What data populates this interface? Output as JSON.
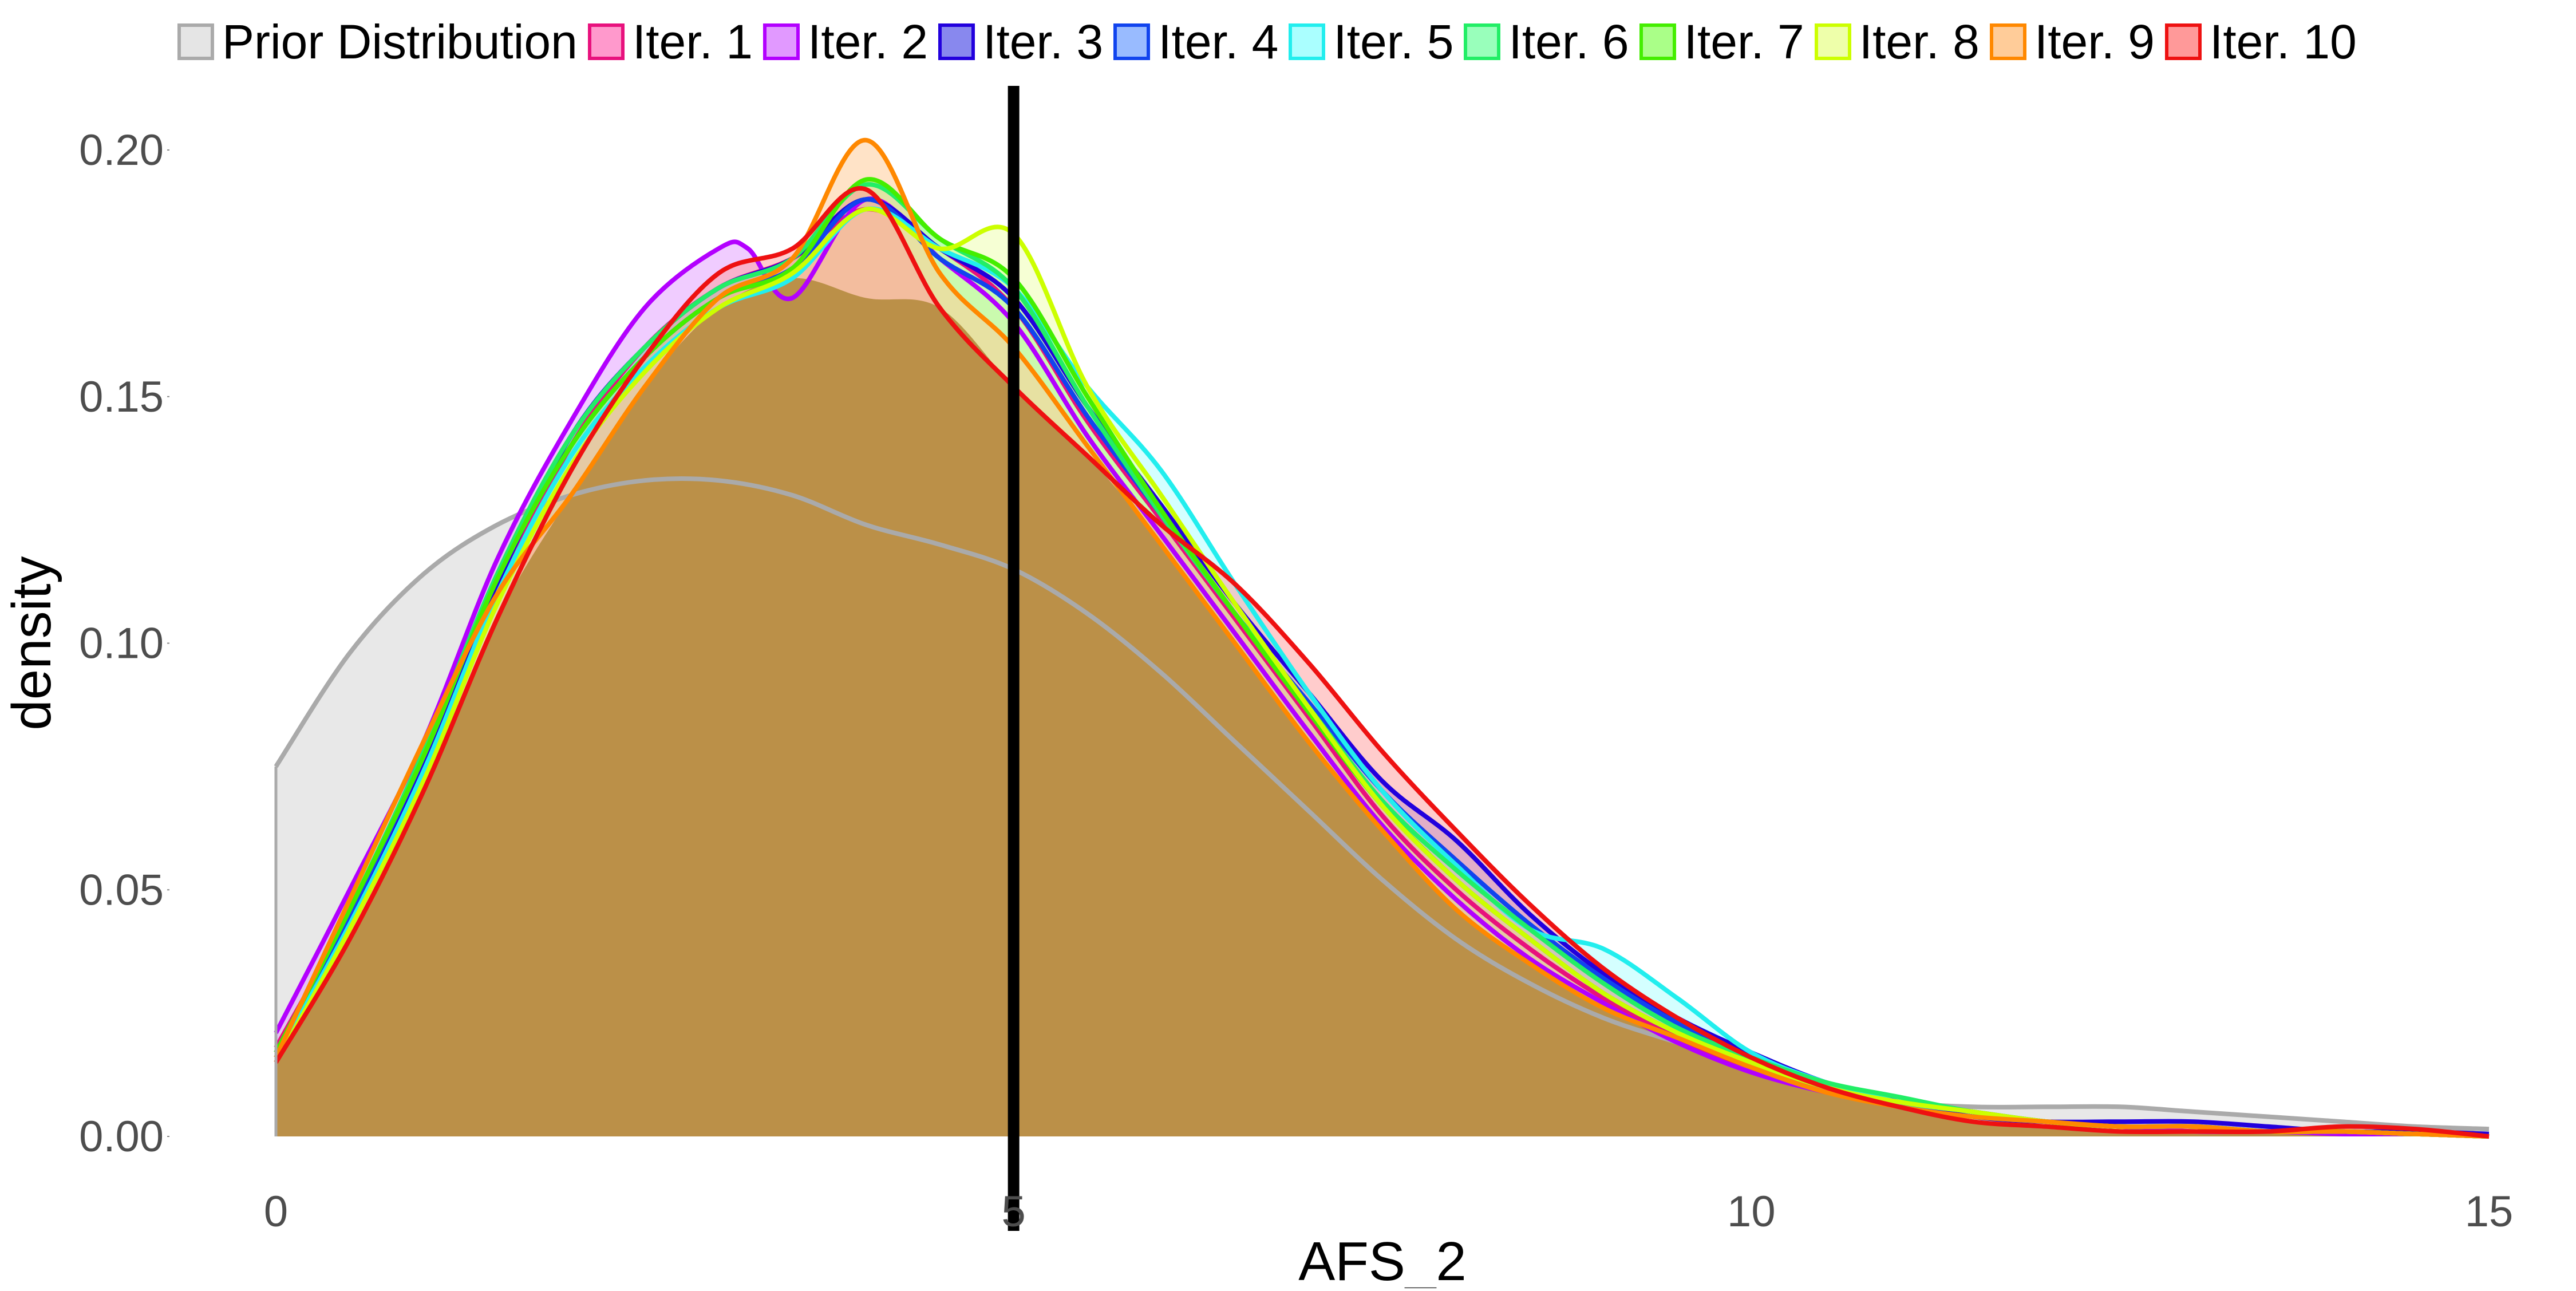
{
  "chart_data": {
    "type": "area",
    "title": "",
    "xlabel": "AFS_2",
    "ylabel": "density",
    "xlim": [
      0,
      15
    ],
    "ylim": [
      0,
      0.2
    ],
    "x_ticks": [
      "0",
      "5",
      "10",
      "15"
    ],
    "y_ticks": [
      "0.00",
      "0.05",
      "0.10",
      "0.15",
      "0.20"
    ],
    "grid": false,
    "legend_position": "top",
    "reference_line_x": 5,
    "series": [
      {
        "name": "Prior Distribution",
        "line_color": "#aaaaaa",
        "fill_color": "#e5e5e5",
        "fill_opacity": 0.9,
        "x": [
          0,
          0.5,
          1,
          1.5,
          2,
          2.5,
          3,
          3.5,
          4,
          4.5,
          5,
          5.5,
          6,
          6.5,
          7,
          7.5,
          8,
          8.5,
          9,
          9.5,
          10,
          10.5,
          11,
          11.5,
          12,
          12.5,
          13,
          13.5,
          14,
          14.5,
          15
        ],
        "y": [
          0.075,
          0.098,
          0.114,
          0.124,
          0.13,
          0.133,
          0.133,
          0.13,
          0.124,
          0.12,
          0.115,
          0.106,
          0.094,
          0.08,
          0.066,
          0.052,
          0.04,
          0.031,
          0.024,
          0.019,
          0.014,
          0.01,
          0.007,
          0.006,
          0.006,
          0.006,
          0.005,
          0.004,
          0.003,
          0.002,
          0.0015
        ]
      },
      {
        "name": "Iter. 1",
        "line_color": "#e8117d",
        "fill_color": "#ff99cc",
        "fill_opacity": 0.5,
        "x": [
          0,
          0.5,
          1,
          1.5,
          2,
          2.5,
          3,
          3.5,
          4,
          4.5,
          5,
          5.5,
          6,
          6.5,
          7,
          7.5,
          8,
          8.5,
          9,
          9.5,
          10,
          10.5,
          11,
          11.5,
          12,
          12.5,
          13,
          13.5,
          14,
          14.5,
          15
        ],
        "y": [
          0.018,
          0.045,
          0.075,
          0.11,
          0.14,
          0.16,
          0.172,
          0.178,
          0.188,
          0.18,
          0.168,
          0.145,
          0.125,
          0.105,
          0.085,
          0.065,
          0.05,
          0.038,
          0.028,
          0.02,
          0.014,
          0.01,
          0.007,
          0.005,
          0.003,
          0.002,
          0.002,
          0.001,
          0.001,
          0.0005,
          0.0
        ]
      },
      {
        "name": "Iter. 2",
        "line_color": "#b300ff",
        "fill_color": "#e199ff",
        "fill_opacity": 0.5,
        "x": [
          0,
          0.5,
          1,
          1.5,
          2,
          2.5,
          3,
          3.2,
          3.5,
          4,
          4.5,
          5,
          5.5,
          6,
          6.5,
          7,
          7.5,
          8,
          8.5,
          9,
          9.5,
          10,
          10.5,
          11,
          11.5,
          12,
          12.5,
          13,
          13.5,
          14,
          14.5,
          15
        ],
        "y": [
          0.021,
          0.05,
          0.08,
          0.117,
          0.145,
          0.168,
          0.18,
          0.18,
          0.17,
          0.19,
          0.178,
          0.165,
          0.142,
          0.122,
          0.102,
          0.082,
          0.063,
          0.048,
          0.036,
          0.027,
          0.019,
          0.013,
          0.009,
          0.006,
          0.004,
          0.003,
          0.002,
          0.001,
          0.001,
          0.0005,
          0.0005,
          0.0
        ]
      },
      {
        "name": "Iter. 3",
        "line_color": "#2200dd",
        "fill_color": "#8888ee",
        "fill_opacity": 0.5,
        "x": [
          0,
          0.5,
          1,
          1.5,
          2,
          2.5,
          3,
          3.5,
          4,
          4.5,
          5,
          5.5,
          6,
          6.5,
          7,
          7.5,
          8,
          8.5,
          9,
          9.5,
          10,
          10.5,
          11,
          11.5,
          12,
          12.5,
          13,
          13.5,
          14,
          14.5,
          15
        ],
        "y": [
          0.017,
          0.044,
          0.076,
          0.112,
          0.142,
          0.16,
          0.172,
          0.178,
          0.19,
          0.18,
          0.17,
          0.148,
          0.128,
          0.108,
          0.09,
          0.072,
          0.06,
          0.045,
          0.033,
          0.024,
          0.017,
          0.011,
          0.007,
          0.004,
          0.003,
          0.003,
          0.003,
          0.002,
          0.001,
          0.001,
          0.0005
        ]
      },
      {
        "name": "Iter. 4",
        "line_color": "#1144ee",
        "fill_color": "#99bbff",
        "fill_opacity": 0.5,
        "x": [
          0,
          0.5,
          1,
          1.5,
          2,
          2.5,
          3,
          3.5,
          4,
          4.5,
          5,
          5.5,
          6,
          6.5,
          7,
          7.5,
          8,
          8.5,
          9,
          9.5,
          10,
          10.5,
          11,
          11.5,
          12,
          12.5,
          13,
          13.5,
          14,
          14.5,
          15
        ],
        "y": [
          0.017,
          0.045,
          0.077,
          0.113,
          0.14,
          0.158,
          0.17,
          0.176,
          0.19,
          0.178,
          0.168,
          0.146,
          0.126,
          0.106,
          0.088,
          0.07,
          0.056,
          0.043,
          0.032,
          0.023,
          0.016,
          0.01,
          0.007,
          0.005,
          0.003,
          0.002,
          0.002,
          0.001,
          0.001,
          0.0005,
          0.0
        ]
      },
      {
        "name": "Iter. 5",
        "line_color": "#22eeee",
        "fill_color": "#aaffff",
        "fill_opacity": 0.5,
        "x": [
          0,
          0.5,
          1,
          1.5,
          2,
          2.5,
          3,
          3.5,
          4,
          4.5,
          5,
          5.5,
          6,
          6.5,
          7,
          7.5,
          8,
          8.5,
          9,
          9.5,
          10,
          10.5,
          11,
          11.5,
          12,
          12.5,
          13,
          13.5,
          14,
          14.5,
          15
        ],
        "y": [
          0.016,
          0.043,
          0.074,
          0.11,
          0.138,
          0.156,
          0.168,
          0.174,
          0.188,
          0.18,
          0.172,
          0.152,
          0.135,
          0.112,
          0.09,
          0.07,
          0.055,
          0.042,
          0.038,
          0.028,
          0.017,
          0.011,
          0.007,
          0.005,
          0.003,
          0.002,
          0.002,
          0.001,
          0.001,
          0.0005,
          0.0
        ]
      },
      {
        "name": "Iter. 6",
        "line_color": "#22ee66",
        "fill_color": "#99ffbb",
        "fill_opacity": 0.5,
        "x": [
          0,
          0.5,
          1,
          1.5,
          2,
          2.5,
          3,
          3.5,
          4,
          4.5,
          5,
          5.5,
          6,
          6.5,
          7,
          7.5,
          8,
          8.5,
          9,
          9.5,
          10,
          10.5,
          11,
          11.5,
          12,
          12.5,
          13,
          13.5,
          14,
          14.5,
          15
        ],
        "y": [
          0.017,
          0.046,
          0.078,
          0.114,
          0.142,
          0.16,
          0.172,
          0.178,
          0.193,
          0.182,
          0.172,
          0.148,
          0.126,
          0.106,
          0.087,
          0.068,
          0.054,
          0.042,
          0.031,
          0.022,
          0.016,
          0.011,
          0.008,
          0.005,
          0.003,
          0.002,
          0.002,
          0.001,
          0.001,
          0.0005,
          0.0
        ]
      },
      {
        "name": "Iter. 7",
        "line_color": "#44ee00",
        "fill_color": "#aaff88",
        "fill_opacity": 0.5,
        "x": [
          0,
          0.5,
          1,
          1.5,
          2,
          2.5,
          3,
          3.5,
          4,
          4.5,
          5,
          5.5,
          6,
          6.5,
          7,
          7.5,
          8,
          8.5,
          9,
          9.5,
          10,
          10.5,
          11,
          11.5,
          12,
          12.5,
          13,
          13.5,
          14,
          14.5,
          15
        ],
        "y": [
          0.017,
          0.046,
          0.077,
          0.113,
          0.14,
          0.158,
          0.17,
          0.176,
          0.194,
          0.182,
          0.174,
          0.15,
          0.127,
          0.106,
          0.086,
          0.067,
          0.052,
          0.04,
          0.029,
          0.021,
          0.015,
          0.01,
          0.007,
          0.005,
          0.003,
          0.002,
          0.002,
          0.001,
          0.001,
          0.0005,
          0.0
        ]
      },
      {
        "name": "Iter. 8",
        "line_color": "#ccff00",
        "fill_color": "#eeffaa",
        "fill_opacity": 0.5,
        "x": [
          0,
          0.5,
          1,
          1.5,
          2,
          2.5,
          3,
          3.5,
          4,
          4.5,
          5,
          5.5,
          6,
          6.5,
          7,
          7.5,
          8,
          8.5,
          9,
          9.5,
          10,
          10.5,
          11,
          11.5,
          12,
          12.5,
          13,
          13.5,
          14,
          14.5,
          15
        ],
        "y": [
          0.015,
          0.042,
          0.072,
          0.108,
          0.136,
          0.155,
          0.168,
          0.175,
          0.188,
          0.18,
          0.183,
          0.152,
          0.13,
          0.108,
          0.087,
          0.067,
          0.052,
          0.04,
          0.029,
          0.021,
          0.015,
          0.01,
          0.007,
          0.005,
          0.003,
          0.002,
          0.002,
          0.001,
          0.001,
          0.0005,
          0.0
        ]
      },
      {
        "name": "Iter. 9",
        "line_color": "#ff8800",
        "fill_color": "#ffcc99",
        "fill_opacity": 0.55,
        "x": [
          0,
          0.5,
          1,
          1.5,
          2,
          2.5,
          3,
          3.5,
          4,
          4.5,
          5,
          5.5,
          6,
          6.5,
          7,
          7.5,
          8,
          8.5,
          9,
          9.5,
          10,
          10.5,
          11,
          11.5,
          12,
          12.5,
          13,
          13.5,
          14,
          14.5,
          15
        ],
        "y": [
          0.016,
          0.048,
          0.08,
          0.11,
          0.13,
          0.152,
          0.17,
          0.178,
          0.202,
          0.175,
          0.16,
          0.14,
          0.12,
          0.1,
          0.08,
          0.062,
          0.046,
          0.035,
          0.026,
          0.02,
          0.014,
          0.009,
          0.006,
          0.004,
          0.003,
          0.002,
          0.002,
          0.001,
          0.001,
          0.0005,
          0.0
        ]
      },
      {
        "name": "Iter. 10",
        "line_color": "#ee1111",
        "fill_color": "#ff9999",
        "fill_opacity": 0.5,
        "x": [
          0,
          0.5,
          1,
          1.5,
          2,
          2.5,
          3,
          3.5,
          4,
          4.5,
          5,
          5.5,
          6,
          6.5,
          7,
          7.5,
          8,
          8.5,
          9,
          9.5,
          10,
          10.5,
          11,
          11.5,
          12,
          12.5,
          13,
          13.5,
          14,
          14.5,
          15
        ],
        "y": [
          0.015,
          0.04,
          0.07,
          0.105,
          0.135,
          0.158,
          0.175,
          0.18,
          0.192,
          0.168,
          0.152,
          0.138,
          0.124,
          0.112,
          0.096,
          0.078,
          0.062,
          0.047,
          0.034,
          0.024,
          0.016,
          0.01,
          0.006,
          0.003,
          0.002,
          0.001,
          0.001,
          0.001,
          0.002,
          0.0015,
          0.0
        ]
      }
    ],
    "overlay_fill_color": "#b08838"
  }
}
